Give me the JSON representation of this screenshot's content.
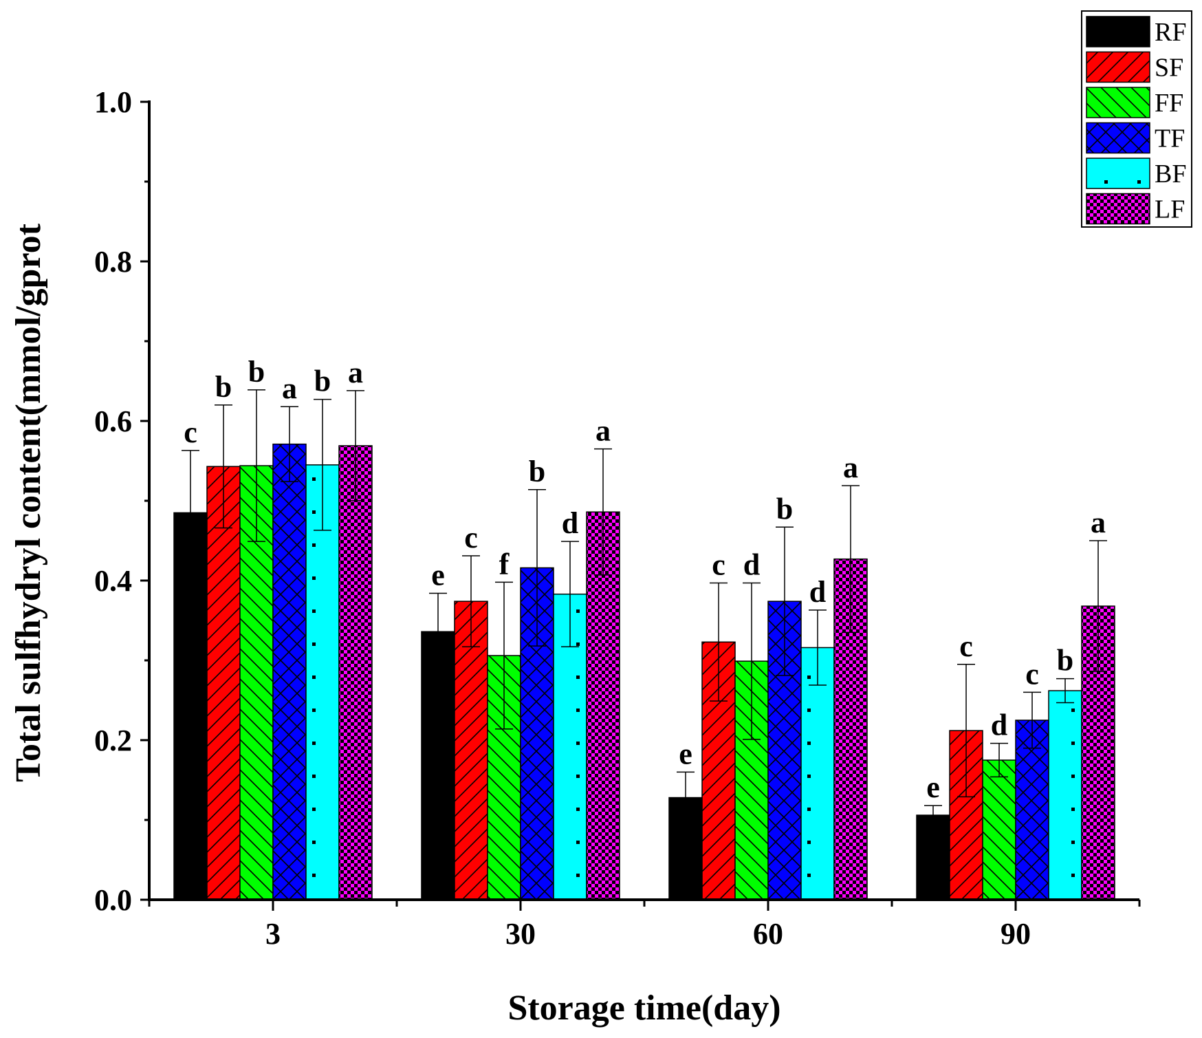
{
  "chart_data": {
    "type": "bar",
    "title": "",
    "xlabel": "Storage time(day)",
    "ylabel": "Total sulfhydryl content(mmol/gprot",
    "ylim": [
      0,
      1.0
    ],
    "yticks": [
      "0.0",
      "0.2",
      "0.4",
      "0.6",
      "0.8",
      "1.0"
    ],
    "categories": [
      "3",
      "30",
      "60",
      "90"
    ],
    "legend_position": "top-right",
    "series": [
      {
        "name": "RF",
        "color": "#000000",
        "pattern": "solid",
        "values": [
          0.485,
          0.336,
          0.128,
          0.106
        ],
        "errors": [
          0.078,
          0.048,
          0.032,
          0.012
        ],
        "letters": [
          "c",
          "e",
          "e",
          "e"
        ]
      },
      {
        "name": "SF",
        "color": "#ff0000",
        "pattern": "diagonal-right",
        "values": [
          0.543,
          0.374,
          0.323,
          0.212
        ],
        "errors": [
          0.077,
          0.057,
          0.074,
          0.083
        ],
        "letters": [
          "b",
          "c",
          "c",
          "c"
        ]
      },
      {
        "name": "FF",
        "color": "#00ff00",
        "pattern": "diagonal-left",
        "values": [
          0.544,
          0.306,
          0.299,
          0.175
        ],
        "errors": [
          0.095,
          0.092,
          0.098,
          0.021
        ],
        "letters": [
          "b",
          "f",
          "d",
          "d"
        ]
      },
      {
        "name": "TF",
        "color": "#0000ff",
        "pattern": "crosshatch",
        "values": [
          0.571,
          0.416,
          0.374,
          0.225
        ],
        "errors": [
          0.047,
          0.098,
          0.093,
          0.035
        ],
        "letters": [
          "a",
          "b",
          "b",
          "c"
        ]
      },
      {
        "name": "BF",
        "color": "#00ffff",
        "pattern": "dots",
        "values": [
          0.545,
          0.383,
          0.316,
          0.262
        ],
        "errors": [
          0.082,
          0.066,
          0.047,
          0.015
        ],
        "letters": [
          "b",
          "d",
          "d",
          "b"
        ]
      },
      {
        "name": "LF",
        "color": "#ff00ff",
        "pattern": "checker",
        "values": [
          0.569,
          0.486,
          0.427,
          0.368
        ],
        "errors": [
          0.069,
          0.079,
          0.092,
          0.082
        ],
        "letters": [
          "a",
          "a",
          "a",
          "a"
        ]
      }
    ]
  }
}
